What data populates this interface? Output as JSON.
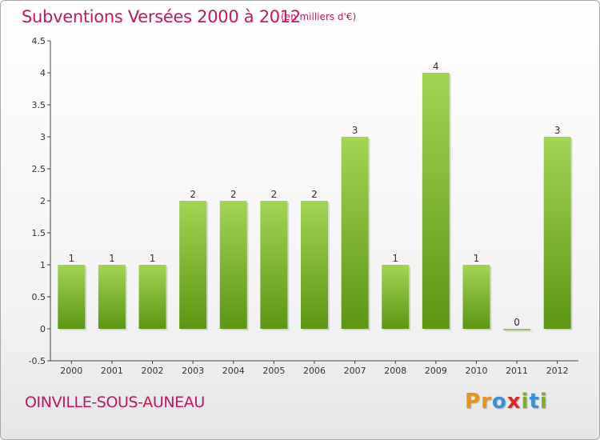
{
  "header": {
    "title": "Subventions Versées 2000 à 2012",
    "unit": "(en milliers d'€)"
  },
  "footer": {
    "commune": "OINVILLE-SOUS-AUNEAU",
    "logo_letters": [
      "P",
      "r",
      "o",
      "x",
      "i",
      "t",
      "i"
    ],
    "logo_colors": [
      "#e8941a",
      "#e8941a",
      "#3f8fd8",
      "#d92a2a",
      "#7ab02b",
      "#3f8fd8",
      "#7ab02b"
    ]
  },
  "chart_data": {
    "type": "bar",
    "categories": [
      "2000",
      "2001",
      "2002",
      "2003",
      "2004",
      "2005",
      "2006",
      "2007",
      "2008",
      "2009",
      "2010",
      "2011",
      "2012"
    ],
    "values": [
      1,
      1,
      1,
      2,
      2,
      2,
      2,
      3,
      1,
      4,
      1,
      0,
      3
    ],
    "data_labels": [
      "1",
      "1",
      "1",
      "2",
      "2",
      "2",
      "2",
      "3",
      "1",
      "4",
      "1",
      "0",
      "3"
    ],
    "yticks": [
      -0.5,
      0,
      0.5,
      1,
      1.5,
      2,
      2.5,
      3,
      3.5,
      4,
      4.5
    ],
    "ytick_labels": [
      "-0.5",
      "0",
      "0.5",
      "1",
      "1.5",
      "2",
      "2.5",
      "3",
      "3.5",
      "4",
      "4.5"
    ],
    "ylim": [
      -0.5,
      4.5
    ],
    "bar_color_light": "#a4d454",
    "bar_color_dark": "#5c9614",
    "grid": false
  }
}
